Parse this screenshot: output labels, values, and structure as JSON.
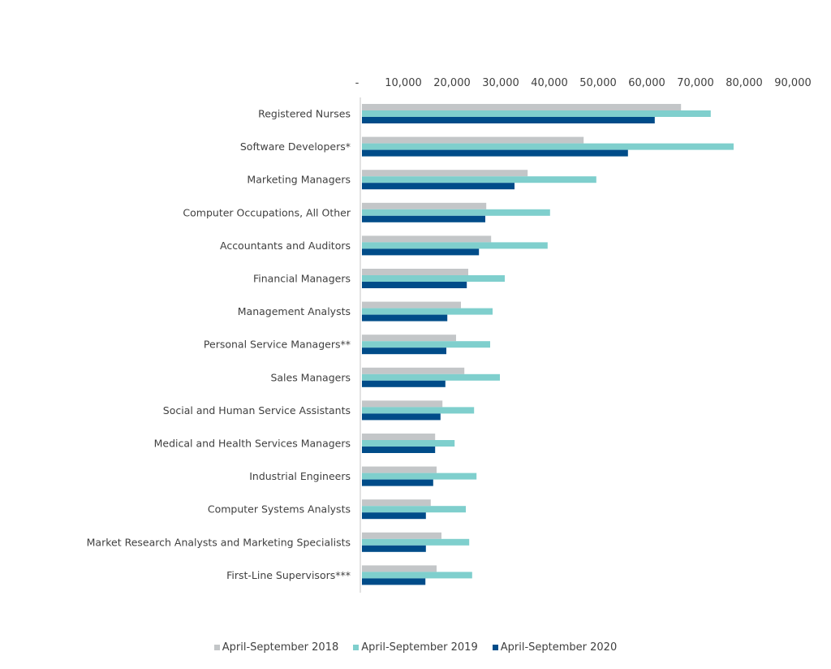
{
  "chart_data": {
    "type": "bar",
    "orientation": "horizontal",
    "title": "",
    "xlabel": "",
    "ylabel": "",
    "xlim": [
      0,
      90000
    ],
    "x_ticks": [
      "-",
      "10,000",
      "20,000",
      "30,000",
      "40,000",
      "50,000",
      "60,000",
      "70,000",
      "80,000",
      "90,000"
    ],
    "x_tick_values": [
      0,
      10000,
      20000,
      30000,
      40000,
      50000,
      60000,
      70000,
      80000,
      90000
    ],
    "grid": false,
    "legend_position": "bottom",
    "categories": [
      "Registered Nurses",
      "Software Developers*",
      "Marketing Managers",
      "Computer Occupations, All Other",
      "Accountants and Auditors",
      "Financial Managers",
      "Management Analysts",
      "Personal Service Managers**",
      "Sales Managers",
      "Social and Human Service Assistants",
      "Medical and Health Services Managers",
      "Industrial Engineers",
      "Computer Systems Analysts",
      "Market Research Analysts and Marketing Specialists",
      "First-Line Supervisors***"
    ],
    "series": [
      {
        "name": "April-September 2018",
        "color": "#c3c6c8",
        "values": [
          65700,
          45700,
          34200,
          25700,
          26700,
          22000,
          20500,
          19500,
          21200,
          16700,
          15200,
          15500,
          14300,
          16500,
          15500
        ]
      },
      {
        "name": "April-September 2019",
        "color": "#7fcfcd",
        "values": [
          71800,
          76500,
          48300,
          38800,
          38300,
          29500,
          27000,
          26500,
          28500,
          23200,
          19200,
          23700,
          21500,
          22200,
          22800
        ]
      },
      {
        "name": "April-September 2020",
        "color": "#004c89",
        "values": [
          60300,
          54800,
          31500,
          25500,
          24200,
          21700,
          17700,
          17500,
          17300,
          16300,
          15200,
          14800,
          13300,
          13300,
          13200
        ]
      }
    ]
  }
}
